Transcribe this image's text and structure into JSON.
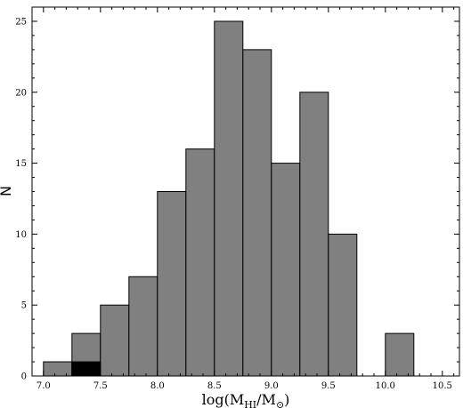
{
  "chart_data": {
    "type": "bar",
    "subtype": "histogram",
    "title": "",
    "xlabel": {
      "prefix": "log(M",
      "subscript": "HI",
      "middle": "/M",
      "symbol": "⊙",
      "suffix": ")"
    },
    "ylabel": "N",
    "xlim": [
      6.9,
      10.65
    ],
    "ylim": [
      0,
      26
    ],
    "xticks": [
      "7.0",
      "7.5",
      "8.0",
      "8.5",
      "9.0",
      "9.5",
      "10.0",
      "10.5"
    ],
    "yticks": [
      "0",
      "5",
      "10",
      "15",
      "20",
      "25"
    ],
    "grid": false,
    "bin_width": 0.25,
    "series": [
      {
        "color": "#808080",
        "bins": [
          {
            "start": 7.0,
            "value": 1
          },
          {
            "start": 7.25,
            "value": 3
          },
          {
            "start": 7.5,
            "value": 5
          },
          {
            "start": 7.75,
            "value": 7
          },
          {
            "start": 8.0,
            "value": 13
          },
          {
            "start": 8.25,
            "value": 16
          },
          {
            "start": 8.5,
            "value": 25
          },
          {
            "start": 8.75,
            "value": 23
          },
          {
            "start": 9.0,
            "value": 15
          },
          {
            "start": 9.25,
            "value": 20
          },
          {
            "start": 9.5,
            "value": 10
          },
          {
            "start": 10.0,
            "value": 3
          }
        ]
      },
      {
        "color": "#000000",
        "bins": [
          {
            "start": 7.25,
            "value": 1
          }
        ]
      }
    ]
  }
}
